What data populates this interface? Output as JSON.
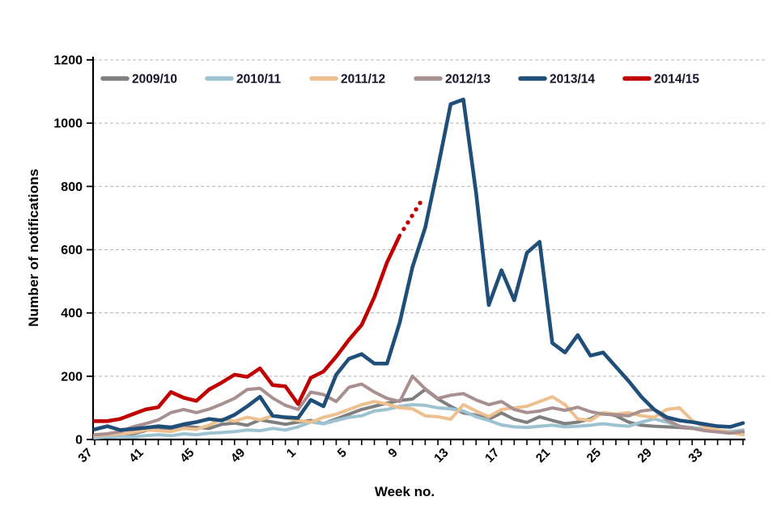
{
  "chart_data": {
    "type": "line",
    "title": "",
    "xlabel": "Week no.",
    "ylabel": "Number of notifications",
    "ylim": [
      0,
      1200
    ],
    "grid": "horizontal-dashed",
    "legend_position": "top-horizontal",
    "ytick_labels": [
      "0",
      "200",
      "400",
      "600",
      "800",
      "1000",
      "1200"
    ],
    "xtick_labels_shown": [
      "37",
      "41",
      "45",
      "49",
      "1",
      "5",
      "9",
      "13",
      "17",
      "21",
      "25",
      "29",
      "33"
    ],
    "xtick_label_every": 4,
    "categories": [
      "37",
      "38",
      "39",
      "40",
      "41",
      "42",
      "43",
      "44",
      "45",
      "46",
      "47",
      "48",
      "49",
      "50",
      "51",
      "52",
      "1",
      "2",
      "3",
      "4",
      "5",
      "6",
      "7",
      "8",
      "9",
      "10",
      "11",
      "12",
      "13",
      "14",
      "15",
      "16",
      "17",
      "18",
      "19",
      "20",
      "21",
      "22",
      "23",
      "24",
      "25",
      "26",
      "27",
      "28",
      "29",
      "30",
      "31",
      "32",
      "33",
      "34",
      "35",
      "36"
    ],
    "series": [
      {
        "name": "2009/10",
        "color": "#7f7f7f",
        "values": [
          12,
          14,
          12,
          18,
          28,
          38,
          30,
          42,
          38,
          35,
          48,
          52,
          45,
          62,
          55,
          48,
          55,
          60,
          50,
          65,
          80,
          95,
          105,
          115,
          123,
          128,
          158,
          128,
          105,
          84,
          77,
          64,
          84,
          64,
          54,
          72,
          60,
          50,
          55,
          65,
          85,
          75,
          55,
          45,
          42,
          40,
          38,
          35,
          30,
          28,
          25,
          22
        ]
      },
      {
        "name": "2010/11",
        "color": "#9dc3d3",
        "values": [
          5,
          8,
          10,
          8,
          12,
          15,
          12,
          18,
          15,
          20,
          22,
          25,
          30,
          28,
          35,
          30,
          40,
          55,
          50,
          60,
          70,
          75,
          90,
          95,
          105,
          110,
          108,
          100,
          97,
          90,
          72,
          60,
          46,
          40,
          38,
          42,
          45,
          40,
          42,
          45,
          50,
          45,
          42,
          55,
          65,
          55,
          42,
          38,
          33,
          28,
          25,
          30
        ]
      },
      {
        "name": "2011/12",
        "color": "#eec08f",
        "values": [
          12,
          15,
          18,
          22,
          30,
          28,
          25,
          35,
          32,
          45,
          65,
          58,
          70,
          62,
          75,
          68,
          60,
          55,
          70,
          80,
          95,
          110,
          120,
          112,
          100,
          97,
          75,
          72,
          64,
          110,
          90,
          72,
          95,
          100,
          105,
          120,
          135,
          110,
          65,
          60,
          85,
          80,
          85,
          75,
          70,
          95,
          100,
          60,
          38,
          30,
          22,
          15
        ]
      },
      {
        "name": "2012/13",
        "color": "#a88f90",
        "values": [
          15,
          18,
          25,
          40,
          50,
          62,
          85,
          95,
          85,
          96,
          112,
          130,
          158,
          162,
          131,
          108,
          95,
          150,
          142,
          120,
          165,
          175,
          150,
          130,
          120,
          200,
          160,
          130,
          140,
          145,
          125,
          110,
          120,
          95,
          85,
          90,
          100,
          92,
          102,
          88,
          80,
          78,
          75,
          90,
          95,
          62,
          42,
          35,
          28,
          24,
          20,
          25
        ]
      },
      {
        "name": "2013/14",
        "color": "#1f4e79",
        "values": [
          32,
          42,
          30,
          33,
          37,
          42,
          38,
          48,
          55,
          65,
          60,
          78,
          105,
          135,
          75,
          70,
          68,
          125,
          105,
          205,
          255,
          270,
          240,
          240,
          370,
          545,
          670,
          860,
          1060,
          1075,
          780,
          425,
          535,
          440,
          590,
          625,
          305,
          275,
          330,
          265,
          275,
          230,
          185,
          135,
          95,
          70,
          60,
          55,
          48,
          42,
          40,
          52
        ]
      },
      {
        "name": "2014/15",
        "color": "#c00000",
        "values": [
          58,
          58,
          65,
          80,
          95,
          102,
          150,
          132,
          122,
          158,
          180,
          205,
          198,
          225,
          172,
          168,
          112,
          195,
          215,
          262,
          315,
          362,
          450,
          560,
          645,
          null,
          null,
          null,
          null,
          null,
          null,
          null,
          null,
          null,
          null,
          null,
          null,
          null,
          null,
          null,
          null,
          null,
          null,
          null,
          null,
          null,
          null,
          null,
          null,
          null,
          null,
          null
        ]
      }
    ],
    "dotted_extension": {
      "series": "2014/15",
      "style": "dotted (provisional)",
      "start": {
        "week": "9",
        "value": 645
      },
      "end": {
        "week": "10",
        "value": 748
      },
      "num_dots": 5
    }
  }
}
